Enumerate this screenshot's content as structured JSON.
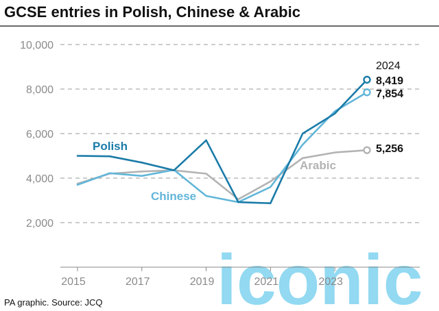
{
  "chart_data": {
    "type": "line",
    "title": "GCSE entries in Polish, Chinese & Arabic",
    "x": [
      2015,
      2016,
      2017,
      2018,
      2019,
      2020,
      2021,
      2022,
      2023,
      2024
    ],
    "x_tick_labels": [
      "2015",
      "2017",
      "2019",
      "2021",
      "2023"
    ],
    "y_tick_labels": [
      "2,000",
      "4,000",
      "6,000",
      "8,000",
      "10,000"
    ],
    "ylim": [
      0,
      10000
    ],
    "y_ticks": [
      2000,
      4000,
      6000,
      8000,
      10000
    ],
    "x_ticks": [
      2015,
      2017,
      2019,
      2021,
      2023
    ],
    "grid": true,
    "series": [
      {
        "name": "Polish",
        "color": "#1a7ba8",
        "values": [
          5000,
          4980,
          4700,
          4350,
          5700,
          2920,
          2870,
          6000,
          6900,
          8419
        ]
      },
      {
        "name": "Chinese",
        "color": "#61b6d8",
        "values": [
          3700,
          4220,
          4100,
          4370,
          3200,
          2920,
          3600,
          5500,
          7000,
          7854
        ]
      },
      {
        "name": "Arabic",
        "color": "#b3b3b3",
        "values": [
          3750,
          4200,
          4300,
          4350,
          4200,
          3050,
          3850,
          4900,
          5150,
          5256
        ]
      }
    ],
    "annotations": {
      "end_year": "2024",
      "end_values": [
        "8,419",
        "7,854",
        "5,256"
      ]
    }
  },
  "source": "PA graphic. Source: JCQ",
  "watermark": "iconic"
}
